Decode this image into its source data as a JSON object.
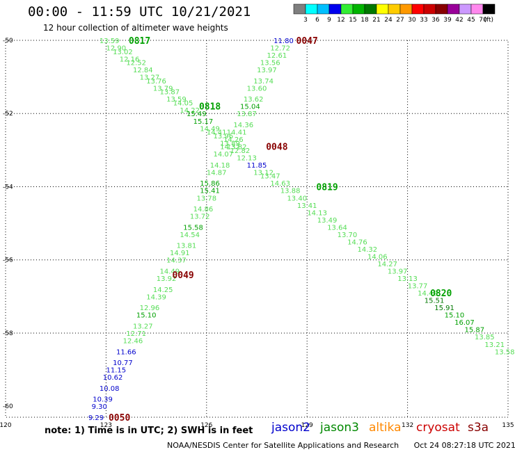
{
  "header": {
    "title": "00:00 - 11:59 UTC 10/21/2021",
    "subtitle": "12 hour collection of altimeter wave heights"
  },
  "legend": {
    "unit": "(ft)",
    "items": [
      {
        "label": "3",
        "color": "#7f7f7f"
      },
      {
        "label": "6",
        "color": "#00ffff"
      },
      {
        "label": "9",
        "color": "#00bfff"
      },
      {
        "label": "12",
        "color": "#0000ee"
      },
      {
        "label": "15",
        "color": "#33ee33"
      },
      {
        "label": "18",
        "color": "#00b400"
      },
      {
        "label": "21",
        "color": "#007800"
      },
      {
        "label": "24",
        "color": "#ffff00"
      },
      {
        "label": "27",
        "color": "#ffcc00"
      },
      {
        "label": "30",
        "color": "#ff9900"
      },
      {
        "label": "33",
        "color": "#ff0000"
      },
      {
        "label": "36",
        "color": "#cc0000"
      },
      {
        "label": "39",
        "color": "#880000"
      },
      {
        "label": "42",
        "color": "#990099"
      },
      {
        "label": "45",
        "color": "#cc99ff"
      },
      {
        "label": "70",
        "color": "#ff88ee"
      },
      {
        "label": "",
        "color": "#000000"
      }
    ]
  },
  "axes": {
    "x_ticks": [
      "120",
      "123",
      "126",
      "129",
      "132",
      "135"
    ],
    "y_ticks": [
      "-50",
      "-52",
      "-54",
      "-56",
      "-58",
      "-60"
    ]
  },
  "footer": {
    "note": "note: 1) Time is in UTC; 2) SWH is in feet",
    "satellites": [
      {
        "name": "jason2",
        "color": "#0000cc"
      },
      {
        "name": "jason3",
        "color": "#008800"
      },
      {
        "name": "altika",
        "color": "#ff8800"
      },
      {
        "name": "cryosat",
        "color": "#cc0000"
      },
      {
        "name": "s3a",
        "color": "#880000"
      }
    ],
    "credit": "NOAA/NESDIS Center for Satellite Applications and Research",
    "timestamp": "Oct 24 08:27:18 UTC 2021"
  },
  "track_colors": {
    "light": "#55dd55",
    "green": "#00a000",
    "dark": "#007800",
    "blue": "#0000cc",
    "red": "#880000"
  },
  "tracks": [
    {
      "sat": "jason3",
      "time": "0817",
      "time_lon": 124.0,
      "time_lat": -50.0,
      "points": [
        {
          "lon": 123.1,
          "lat": -50.0,
          "v": "13.59",
          "c": "light"
        },
        {
          "lon": 123.3,
          "lat": -50.2,
          "v": "12.90",
          "c": "light"
        },
        {
          "lon": 123.5,
          "lat": -50.3,
          "v": "13.02",
          "c": "light"
        },
        {
          "lon": 123.7,
          "lat": -50.5,
          "v": "12.16",
          "c": "light"
        },
        {
          "lon": 123.9,
          "lat": -50.6,
          "v": "12.52",
          "c": "light"
        },
        {
          "lon": 124.1,
          "lat": -50.8,
          "v": "12.84",
          "c": "light"
        },
        {
          "lon": 124.3,
          "lat": -51.0,
          "v": "13.27",
          "c": "light"
        },
        {
          "lon": 124.5,
          "lat": -51.1,
          "v": "13.76",
          "c": "light"
        },
        {
          "lon": 124.7,
          "lat": -51.3,
          "v": "13.79",
          "c": "light"
        },
        {
          "lon": 124.9,
          "lat": -51.4,
          "v": "13.87",
          "c": "light"
        },
        {
          "lon": 125.1,
          "lat": -51.6,
          "v": "13.59",
          "c": "light"
        },
        {
          "lon": 125.3,
          "lat": -51.7,
          "v": "14.05",
          "c": "light"
        },
        {
          "lon": 125.5,
          "lat": -51.9,
          "v": "14.22",
          "c": "light"
        },
        {
          "lon": 125.7,
          "lat": -52.0,
          "v": "15.49",
          "c": "green"
        },
        {
          "lon": 125.9,
          "lat": -52.2,
          "v": "15.17",
          "c": "green"
        },
        {
          "lon": 126.1,
          "lat": -52.4,
          "v": "14.49",
          "c": "light"
        },
        {
          "lon": 126.3,
          "lat": -52.5,
          "v": "14.41",
          "c": "light"
        },
        {
          "lon": 126.5,
          "lat": -52.6,
          "v": "13.96",
          "c": "light"
        },
        {
          "lon": 126.7,
          "lat": -52.8,
          "v": "13.89",
          "c": "light"
        },
        {
          "lon": 126.9,
          "lat": -52.9,
          "v": "13.82",
          "c": "light"
        }
      ]
    },
    {
      "sat": "jason3",
      "time": "0818",
      "time_lon": 126.1,
      "time_lat": -51.8,
      "points": []
    },
    {
      "sat": "jason2",
      "time": "",
      "time_lon": 0,
      "time_lat": 0,
      "points": [
        {
          "lon": 128.3,
          "lat": -50.0,
          "v": "11.80",
          "c": "blue"
        }
      ]
    },
    {
      "sat": "s3a",
      "time": "0047",
      "time_lon": 129.0,
      "time_lat": -50.0,
      "points": [
        {
          "lon": 128.2,
          "lat": -50.2,
          "v": "12.72",
          "c": "light"
        },
        {
          "lon": 128.1,
          "lat": -50.4,
          "v": "12.61",
          "c": "light"
        },
        {
          "lon": 127.9,
          "lat": -50.6,
          "v": "13.56",
          "c": "light"
        },
        {
          "lon": 127.8,
          "lat": -50.8,
          "v": "13.97",
          "c": "light"
        },
        {
          "lon": 127.7,
          "lat": -51.1,
          "v": "13.74",
          "c": "light"
        },
        {
          "lon": 127.5,
          "lat": -51.3,
          "v": "13.60",
          "c": "light"
        },
        {
          "lon": 127.4,
          "lat": -51.6,
          "v": "13.62",
          "c": "light"
        },
        {
          "lon": 127.3,
          "lat": -51.8,
          "v": "15.04",
          "c": "green"
        },
        {
          "lon": 127.2,
          "lat": -52.0,
          "v": "13.87",
          "c": "light"
        },
        {
          "lon": 127.1,
          "lat": -52.3,
          "v": "14.36",
          "c": "light"
        },
        {
          "lon": 126.9,
          "lat": -52.5,
          "v": "14.41",
          "c": "light"
        },
        {
          "lon": 126.8,
          "lat": -52.7,
          "v": "14.26",
          "c": "light"
        },
        {
          "lon": 126.7,
          "lat": -52.9,
          "v": "14.32",
          "c": "light"
        },
        {
          "lon": 126.5,
          "lat": -53.1,
          "v": "14.07",
          "c": "light"
        },
        {
          "lon": 126.4,
          "lat": -53.4,
          "v": "14.18",
          "c": "light"
        },
        {
          "lon": 126.3,
          "lat": -53.6,
          "v": "14.87",
          "c": "light"
        },
        {
          "lon": 126.1,
          "lat": -53.9,
          "v": "15.86",
          "c": "green"
        },
        {
          "lon": 126.1,
          "lat": -54.1,
          "v": "15.41",
          "c": "green"
        },
        {
          "lon": 126.0,
          "lat": -54.3,
          "v": "13.78",
          "c": "light"
        },
        {
          "lon": 125.9,
          "lat": -54.6,
          "v": "14.86",
          "c": "light"
        },
        {
          "lon": 125.8,
          "lat": -54.8,
          "v": "13.72",
          "c": "light"
        },
        {
          "lon": 125.6,
          "lat": -55.1,
          "v": "15.58",
          "c": "green"
        },
        {
          "lon": 125.5,
          "lat": -55.3,
          "v": "14.54",
          "c": "light"
        },
        {
          "lon": 125.4,
          "lat": -55.6,
          "v": "13.81",
          "c": "light"
        },
        {
          "lon": 125.2,
          "lat": -55.8,
          "v": "14.91",
          "c": "light"
        },
        {
          "lon": 125.1,
          "lat": -56.0,
          "v": "14.37",
          "c": "light"
        },
        {
          "lon": 124.9,
          "lat": -56.3,
          "v": "14.49",
          "c": "light"
        },
        {
          "lon": 124.8,
          "lat": -56.5,
          "v": "13.92",
          "c": "light"
        },
        {
          "lon": 124.7,
          "lat": -56.8,
          "v": "14.25",
          "c": "light"
        },
        {
          "lon": 124.5,
          "lat": -57.0,
          "v": "14.39",
          "c": "light"
        },
        {
          "lon": 124.3,
          "lat": -57.3,
          "v": "12.96",
          "c": "light"
        },
        {
          "lon": 124.2,
          "lat": -57.5,
          "v": "15.10",
          "c": "green"
        },
        {
          "lon": 124.1,
          "lat": -57.8,
          "v": "13.27",
          "c": "light"
        },
        {
          "lon": 123.9,
          "lat": -58.0,
          "v": "12.71",
          "c": "light"
        },
        {
          "lon": 123.8,
          "lat": -58.2,
          "v": "12.46",
          "c": "light"
        },
        {
          "lon": 123.6,
          "lat": -58.5,
          "v": "11.66",
          "c": "blue"
        },
        {
          "lon": 123.5,
          "lat": -58.8,
          "v": "10.77",
          "c": "blue"
        },
        {
          "lon": 123.3,
          "lat": -59.0,
          "v": "11.15",
          "c": "blue"
        },
        {
          "lon": 123.2,
          "lat": -59.2,
          "v": "10.62",
          "c": "blue"
        },
        {
          "lon": 123.1,
          "lat": -59.5,
          "v": "10.08",
          "c": "blue"
        },
        {
          "lon": 122.9,
          "lat": -59.8,
          "v": "10.39",
          "c": "blue"
        },
        {
          "lon": 122.8,
          "lat": -60.0,
          "v": "9.30",
          "c": "blue"
        },
        {
          "lon": 122.7,
          "lat": -60.3,
          "v": "9.29",
          "c": "blue"
        }
      ]
    },
    {
      "sat": "s3a",
      "time": "0048",
      "time_lon": 128.1,
      "time_lat": -52.9,
      "points": []
    },
    {
      "sat": "s3a",
      "time": "0049",
      "time_lon": 125.3,
      "time_lat": -56.4,
      "points": []
    },
    {
      "sat": "s3a",
      "time": "0050",
      "time_lon": 123.4,
      "time_lat": -60.3,
      "points": []
    },
    {
      "sat": "jason3",
      "time": "0819",
      "time_lon": 129.6,
      "time_lat": -54.0,
      "points": [
        {
          "lon": 127.0,
          "lat": -53.0,
          "v": "12.82",
          "c": "light"
        },
        {
          "lon": 127.2,
          "lat": -53.2,
          "v": "12.13",
          "c": "light"
        },
        {
          "lon": 127.5,
          "lat": -53.4,
          "v": "11.85",
          "c": "blue"
        },
        {
          "lon": 127.7,
          "lat": -53.6,
          "v": "13.12",
          "c": "light"
        },
        {
          "lon": 127.9,
          "lat": -53.7,
          "v": "13.47",
          "c": "light"
        },
        {
          "lon": 128.2,
          "lat": -53.9,
          "v": "14.63",
          "c": "light"
        },
        {
          "lon": 128.5,
          "lat": -54.1,
          "v": "13.88",
          "c": "light"
        },
        {
          "lon": 128.7,
          "lat": -54.3,
          "v": "13.40",
          "c": "light"
        },
        {
          "lon": 129.0,
          "lat": -54.5,
          "v": "13.41",
          "c": "light"
        },
        {
          "lon": 129.3,
          "lat": -54.7,
          "v": "14.13",
          "c": "light"
        },
        {
          "lon": 129.6,
          "lat": -54.9,
          "v": "13.49",
          "c": "light"
        },
        {
          "lon": 129.9,
          "lat": -55.1,
          "v": "13.64",
          "c": "light"
        },
        {
          "lon": 130.2,
          "lat": -55.3,
          "v": "13.70",
          "c": "light"
        },
        {
          "lon": 130.5,
          "lat": -55.5,
          "v": "14.76",
          "c": "light"
        },
        {
          "lon": 130.8,
          "lat": -55.7,
          "v": "14.32",
          "c": "light"
        },
        {
          "lon": 131.1,
          "lat": -55.9,
          "v": "14.06",
          "c": "light"
        },
        {
          "lon": 131.4,
          "lat": -56.1,
          "v": "14.27",
          "c": "light"
        },
        {
          "lon": 131.7,
          "lat": -56.3,
          "v": "13.97",
          "c": "light"
        },
        {
          "lon": 132.0,
          "lat": -56.5,
          "v": "13.13",
          "c": "light"
        },
        {
          "lon": 132.3,
          "lat": -56.7,
          "v": "13.77",
          "c": "light"
        },
        {
          "lon": 132.6,
          "lat": -56.9,
          "v": "14.42",
          "c": "light"
        },
        {
          "lon": 132.8,
          "lat": -57.1,
          "v": "15.51",
          "c": "dark"
        },
        {
          "lon": 133.1,
          "lat": -57.3,
          "v": "15.91",
          "c": "dark"
        },
        {
          "lon": 133.4,
          "lat": -57.5,
          "v": "15.10",
          "c": "green"
        },
        {
          "lon": 133.7,
          "lat": -57.7,
          "v": "16.07",
          "c": "green"
        },
        {
          "lon": 134.0,
          "lat": -57.9,
          "v": "15.87",
          "c": "green"
        },
        {
          "lon": 134.3,
          "lat": -58.1,
          "v": "13.85",
          "c": "light"
        },
        {
          "lon": 134.6,
          "lat": -58.3,
          "v": "13.21",
          "c": "light"
        },
        {
          "lon": 134.9,
          "lat": -58.5,
          "v": "13.58",
          "c": "light"
        }
      ]
    },
    {
      "sat": "jason3",
      "time": "0820",
      "time_lon": 133.0,
      "time_lat": -56.9,
      "points": []
    }
  ]
}
